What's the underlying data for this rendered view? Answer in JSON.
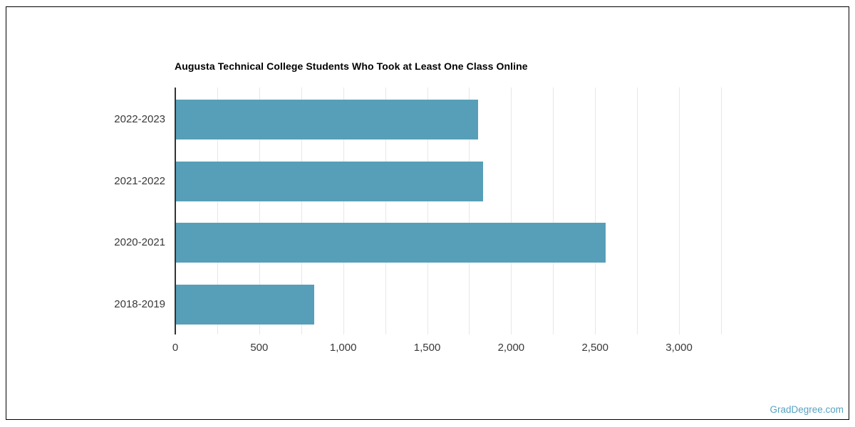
{
  "chart_data": {
    "type": "bar",
    "orientation": "horizontal",
    "title": "Augusta Technical College Students Who Took at Least One Class Online",
    "categories": [
      "2022-2023",
      "2021-2022",
      "2020-2021",
      "2018-2019"
    ],
    "values": [
      1800,
      1830,
      2560,
      825
    ],
    "xlabel": "",
    "ylabel": "",
    "xlim": [
      0,
      3250
    ],
    "x_tick_values": [
      0,
      500,
      1000,
      1500,
      2000,
      2500,
      3000
    ],
    "x_tick_labels": [
      "0",
      "500",
      "1,000",
      "1,500",
      "2,000",
      "2,500",
      "3,000"
    ],
    "gridline_step": 250,
    "grid": true,
    "legend": false,
    "bar_color": "#579fb8"
  },
  "colors": {
    "bar": "#579fb8",
    "gridline": "#e7e7e7",
    "axis_line": "#333333",
    "title_text": "#000000",
    "tick_text": "#383838",
    "watermark": "#57a3c3",
    "frame_border": "#000000",
    "background": "#ffffff"
  },
  "watermark": {
    "text": "GradDegree.com"
  }
}
